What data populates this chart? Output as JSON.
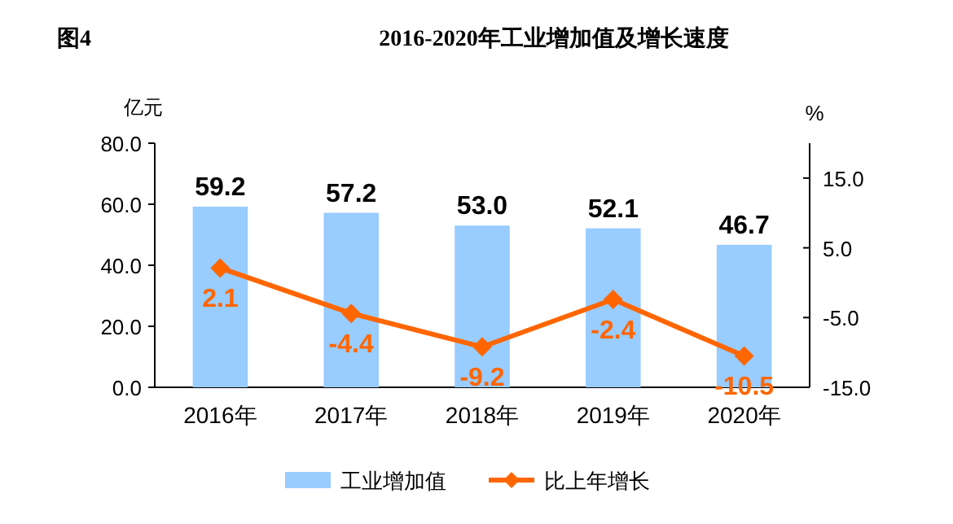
{
  "chart_data": {
    "type": "bar",
    "title": "2016-2020年工业增加值及增长速度",
    "annotations": [
      "图4"
    ],
    "ylabel": "亿元",
    "y2label": "%",
    "categories": [
      "2016年",
      "2017年",
      "2018年",
      "2019年",
      "2020年"
    ],
    "series": [
      {
        "name": "工业增加值",
        "color": "#99ccff",
        "values": [
          59.2,
          57.2,
          53.0,
          52.1,
          46.7
        ],
        "value_labels": [
          "59.2",
          "57.2",
          "53.0",
          "52.1",
          "46.7"
        ]
      },
      {
        "name": "比上年增长",
        "type": "line",
        "axis": "y2",
        "color": "#ff6600",
        "marker": "diamond",
        "values": [
          2.1,
          -4.4,
          -9.2,
          -2.4,
          -10.5
        ]
      }
    ],
    "ylim": [
      0,
      80
    ],
    "yticks": [
      {
        "value": 0,
        "label": "0.0"
      },
      {
        "value": 20,
        "label": "20.0"
      },
      {
        "value": 40,
        "label": "40.0"
      },
      {
        "value": 60,
        "label": "60.0"
      },
      {
        "value": 80,
        "label": "80.0"
      }
    ],
    "y2lim": [
      -15,
      20
    ],
    "y2ticks": [
      {
        "value": -15,
        "label": "-15.0"
      },
      {
        "value": -5,
        "label": "-5.0"
      },
      {
        "value": 5,
        "label": "5.0"
      },
      {
        "value": 15,
        "label": "15.0"
      }
    ],
    "data_labels": true,
    "legend": "bottom"
  }
}
